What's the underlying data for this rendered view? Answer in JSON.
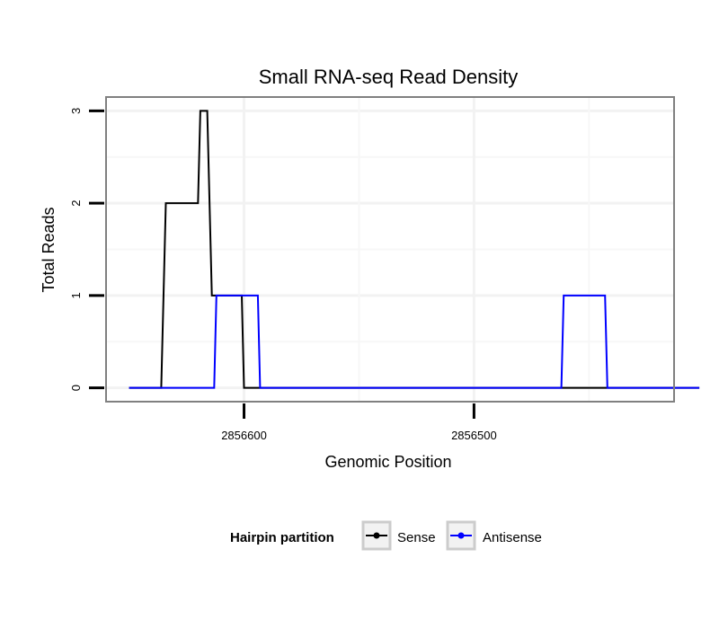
{
  "chart_data": {
    "type": "line",
    "title": "Small RNA-seq Read Density",
    "xlabel": "Genomic Position",
    "ylabel": "Total Reads",
    "x_reversed": true,
    "xlim": [
      2856660,
      2856413
    ],
    "ylim": [
      -0.15,
      3.15
    ],
    "x_ticks": [
      {
        "value": 2856600,
        "label": "2856600"
      },
      {
        "value": 2856500,
        "label": "2856500"
      }
    ],
    "y_ticks": [
      {
        "value": 0,
        "label": "0"
      },
      {
        "value": 1,
        "label": "1"
      },
      {
        "value": 2,
        "label": "2"
      },
      {
        "value": 3,
        "label": "3"
      }
    ],
    "grid": true,
    "legend": {
      "title": "Hairpin partition",
      "position": "bottom",
      "entries": [
        "Sense",
        "Antisense"
      ]
    },
    "series": [
      {
        "name": "Sense",
        "color": "#000000",
        "x": [
          2856650,
          2856636,
          2856634,
          2856620,
          2856619,
          2856616,
          2856614,
          2856602,
          2856601,
          2856600,
          2856589,
          2856588,
          2856402
        ],
        "y": [
          0,
          0,
          2,
          2,
          3,
          3,
          1,
          1,
          1,
          0,
          0,
          0,
          0
        ]
      },
      {
        "name": "Antisense",
        "color": "#0000ff",
        "x": [
          2856650,
          2856613,
          2856612,
          2856594,
          2856593,
          2856590,
          2856545,
          2856535,
          2856534,
          2856462,
          2856461,
          2856443,
          2856442,
          2856402
        ],
        "y": [
          0,
          0,
          1,
          1,
          0,
          0,
          0,
          0,
          0,
          0,
          1,
          1,
          0,
          0
        ]
      }
    ]
  }
}
